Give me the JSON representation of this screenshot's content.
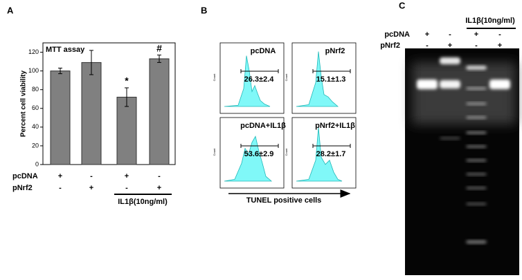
{
  "panel_labels": [
    "A",
    "B",
    "C"
  ],
  "chart_data": {
    "type": "bar",
    "title": "MTT assay",
    "y_label": "Percent cell viability",
    "categories": [
      null,
      null,
      null,
      null
    ],
    "values": [
      100,
      109,
      72,
      113
    ],
    "errors": [
      3,
      13,
      10,
      4
    ],
    "annotations": [
      null,
      null,
      "*",
      "#"
    ],
    "color": "#808080",
    "ylim": [
      0,
      130
    ],
    "yticks": [
      0,
      20,
      40,
      60,
      80,
      100,
      120
    ],
    "treatments": [
      {
        "name": "pcDNA",
        "signs": [
          "+",
          "-",
          "+",
          "-"
        ]
      },
      {
        "name": "pNrf2",
        "signs": [
          "-",
          "+",
          "-",
          "+"
        ]
      }
    ],
    "group_label": "IL1β(10ng/ml)"
  },
  "panel_b": {
    "histograms": [
      {
        "title": "pcDNA",
        "value": "26.3±2.4"
      },
      {
        "title": "pNrf2",
        "value": "15.1±1.3"
      },
      {
        "title": "pcDNA+IL1β",
        "value": "53.6±2.9"
      },
      {
        "title": "pNrf2+IL1β",
        "value": "28.2±1.7"
      }
    ],
    "y_label": "Count",
    "x_label": "TUNEL positive cells"
  },
  "panel_c": {
    "treatments": [
      {
        "name": "pcDNA",
        "signs": [
          "+",
          "-",
          "+",
          "-"
        ]
      },
      {
        "name": "pNrf2",
        "signs": [
          "-",
          "+",
          "-",
          "+"
        ]
      }
    ],
    "group_label": "IL1β(10ng/ml)"
  }
}
